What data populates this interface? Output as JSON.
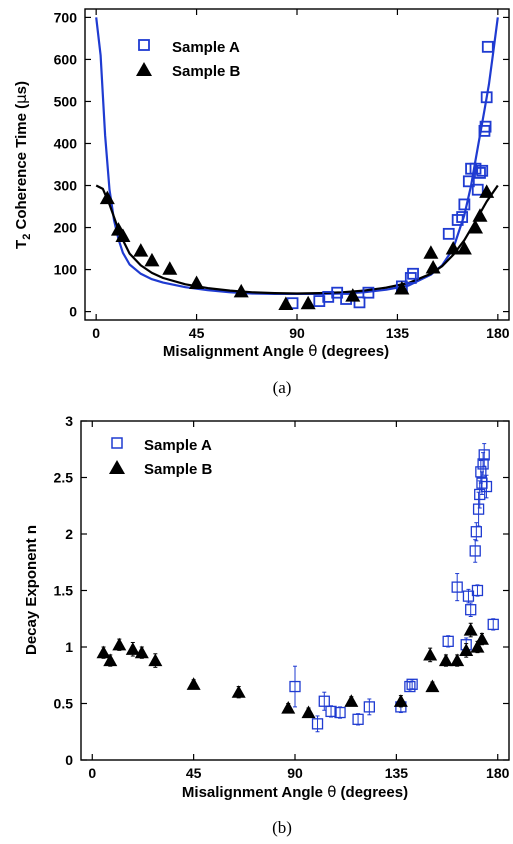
{
  "chart_data": [
    {
      "type": "scatter",
      "panel_label": "(a)",
      "xlabel_pre": "Misalignment Angle  ",
      "xlabel_symbol": "θ",
      "xlabel_post": " (degrees)",
      "ylabel_pre": "T",
      "ylabel_sub": "2",
      "ylabel_post": " Coherence Time (",
      "ylabel_symbol": "μ",
      "ylabel_unit": "s)",
      "xlim": [
        -5,
        185
      ],
      "ylim": [
        -20,
        720
      ],
      "xticks": [
        0,
        45,
        90,
        135,
        180
      ],
      "xtick_labels": [
        "0",
        "45",
        "90",
        "135",
        "180"
      ],
      "yticks": [
        0,
        100,
        200,
        300,
        400,
        500,
        600,
        700
      ],
      "ytick_labels": [
        "0",
        "100",
        "200",
        "300",
        "400",
        "500",
        "600",
        "700"
      ],
      "legend_position": "top-left",
      "series": [
        {
          "name": "Sample A",
          "marker": "square-open",
          "color": "#1f3bd1",
          "x": [
            88,
            100,
            104,
            108,
            112,
            118,
            122,
            137,
            141,
            142,
            158,
            162,
            164,
            165,
            167,
            168,
            170,
            171,
            172,
            173,
            174,
            174.5,
            175,
            175.5
          ],
          "y": [
            20,
            25,
            35,
            45,
            30,
            22,
            45,
            60,
            80,
            90,
            185,
            218,
            225,
            255,
            310,
            340,
            340,
            290,
            330,
            335,
            430,
            440,
            510,
            630
          ]
        },
        {
          "name": "Sample B",
          "marker": "triangle-filled",
          "color": "#000000",
          "x": [
            5,
            10,
            12,
            20,
            25,
            33,
            45,
            65,
            85,
            95,
            115,
            137,
            150,
            151,
            160,
            165,
            170,
            172,
            175
          ],
          "y": [
            270,
            195,
            180,
            145,
            122,
            102,
            68,
            48,
            18,
            20,
            38,
            55,
            140,
            105,
            150,
            150,
            200,
            228,
            285
          ]
        }
      ],
      "fit_curves": [
        {
          "color": "#1f3bd1",
          "x": [
            0,
            2,
            4,
            6,
            8,
            10,
            12,
            15,
            20,
            25,
            30,
            40,
            50,
            60,
            70,
            80,
            90,
            100,
            110,
            120,
            130,
            140,
            150,
            155,
            160,
            165,
            168,
            170,
            172,
            174,
            176,
            178,
            180
          ],
          "y": [
            700,
            610,
            420,
            290,
            218,
            172,
            140,
            112,
            90,
            77,
            69,
            58,
            51,
            46,
            43,
            42,
            42,
            42,
            43,
            46,
            52,
            62,
            88,
            110,
            150,
            230,
            300,
            360,
            420,
            480,
            540,
            620,
            700
          ]
        },
        {
          "color": "#000000",
          "x": [
            0,
            3,
            6,
            9,
            12,
            15,
            20,
            25,
            30,
            40,
            50,
            60,
            70,
            80,
            90,
            100,
            110,
            120,
            130,
            140,
            150,
            155,
            160,
            165,
            170,
            175,
            180
          ],
          "y": [
            300,
            292,
            255,
            210,
            170,
            138,
            110,
            92,
            80,
            65,
            56,
            50,
            46,
            44,
            43,
            44,
            46,
            50,
            57,
            68,
            90,
            108,
            135,
            170,
            215,
            262,
            300
          ]
        }
      ]
    },
    {
      "type": "scatter",
      "panel_label": "(b)",
      "xlabel_pre": "Misalignment Angle ",
      "xlabel_symbol": "θ",
      "xlabel_post": " (degrees)",
      "ylabel": "Decay Exponent n",
      "xlim": [
        -5,
        185
      ],
      "ylim": [
        0,
        3
      ],
      "xticks": [
        0,
        45,
        90,
        135,
        180
      ],
      "xtick_labels": [
        "0",
        "45",
        "90",
        "135",
        "180"
      ],
      "yticks": [
        0,
        0.5,
        1,
        1.5,
        2,
        2.5,
        3
      ],
      "ytick_labels": [
        "0",
        "0.5",
        "1",
        "1.5",
        "2",
        "2.5",
        "3"
      ],
      "legend_position": "top-left",
      "series": [
        {
          "name": "Sample A",
          "marker": "square-open",
          "color": "#1f3bd1",
          "x": [
            90,
            100,
            103,
            106,
            110,
            118,
            123,
            137,
            141,
            142,
            158,
            162,
            166,
            167,
            168,
            170,
            170.5,
            171,
            171.5,
            172,
            172.5,
            173,
            173.5,
            174,
            175,
            178
          ],
          "y": [
            0.65,
            0.32,
            0.52,
            0.43,
            0.42,
            0.36,
            0.47,
            0.47,
            0.65,
            0.67,
            1.05,
            1.53,
            1.02,
            1.45,
            1.33,
            1.85,
            2.02,
            1.5,
            2.22,
            2.35,
            2.55,
            2.45,
            2.62,
            2.7,
            2.42,
            1.2
          ],
          "err": [
            0.18,
            0.07,
            0.08,
            0.05,
            0.05,
            0.05,
            0.07,
            0.05,
            0.04,
            0.04,
            0.05,
            0.12,
            0.06,
            0.06,
            0.06,
            0.1,
            0.08,
            0.05,
            0.15,
            0.12,
            0.1,
            0.1,
            0.1,
            0.1,
            0.1,
            0.05
          ]
        },
        {
          "name": "Sample B",
          "marker": "triangle-filled",
          "color": "#000000",
          "x": [
            5,
            8,
            12,
            18,
            22,
            28,
            45,
            65,
            87,
            96,
            115,
            137,
            150,
            151,
            157,
            162,
            166,
            168,
            171,
            173
          ],
          "y": [
            0.95,
            0.88,
            1.02,
            0.98,
            0.95,
            0.88,
            0.67,
            0.6,
            0.46,
            0.42,
            0.52,
            0.52,
            0.93,
            0.65,
            0.88,
            0.88,
            0.97,
            1.15,
            1.0,
            1.07
          ],
          "err": [
            0.05,
            0.05,
            0.05,
            0.06,
            0.05,
            0.06,
            0.04,
            0.05,
            0.04,
            0.04,
            0.04,
            0.05,
            0.06,
            0.04,
            0.05,
            0.05,
            0.06,
            0.06,
            0.05,
            0.05
          ]
        }
      ]
    }
  ]
}
